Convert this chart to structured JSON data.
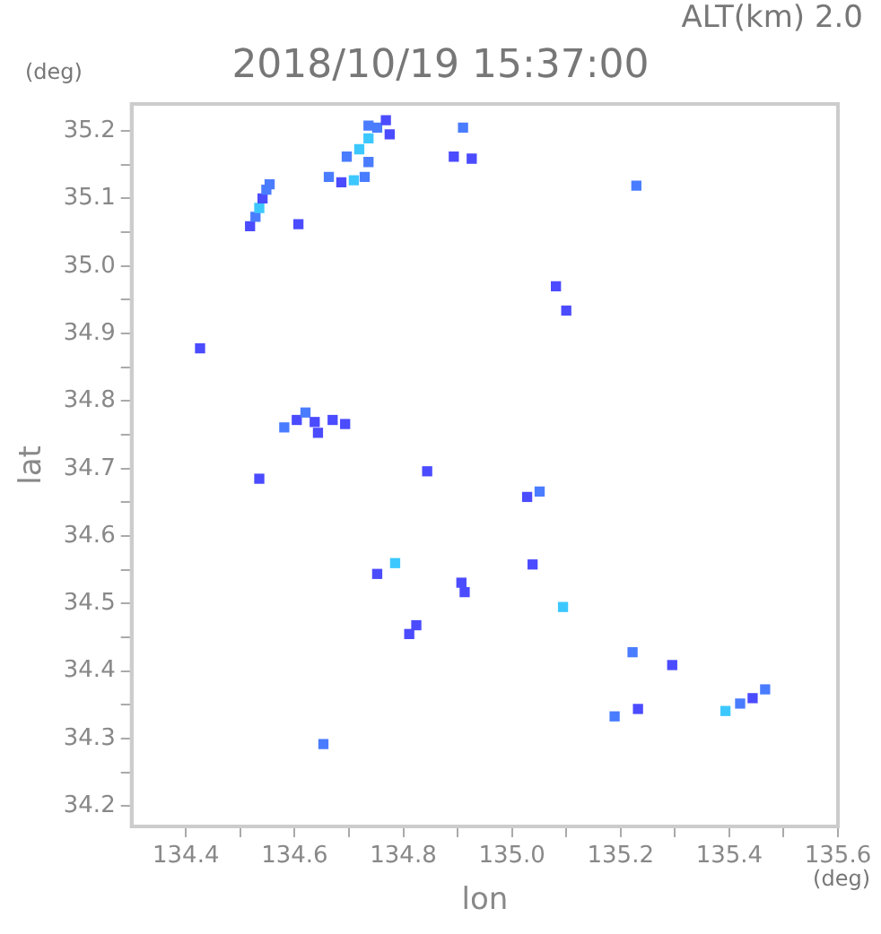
{
  "chart_data": {
    "type": "scatter",
    "title": "2018/10/19 15:37:00",
    "xlabel": "lon",
    "ylabel": "lat",
    "annotations": [
      "ALT(km) 2.0",
      "(deg)",
      "(deg)"
    ],
    "xlim": [
      134.3,
      135.6
    ],
    "xticks": [
      134.4,
      {
        "value": 134.5,
        "label": null
      },
      134.6,
      {
        "value": 134.7,
        "label": null
      },
      134.8,
      {
        "value": 134.9,
        "label": null
      },
      {
        "value": 135.0,
        "label": "135.0"
      },
      {
        "value": 135.1,
        "label": null
      },
      135.2,
      {
        "value": 135.3,
        "label": null
      },
      135.4,
      {
        "value": 135.5,
        "label": null
      },
      135.6
    ],
    "ylim": [
      34.17,
      35.24
    ],
    "yticks": [
      34.2,
      {
        "value": 34.25,
        "label": null
      },
      34.3,
      {
        "value": 34.35,
        "label": null
      },
      34.4,
      {
        "value": 34.45,
        "label": null
      },
      34.5,
      {
        "value": 34.55,
        "label": null
      },
      34.6,
      {
        "value": 34.65,
        "label": null
      },
      34.7,
      {
        "value": 34.75,
        "label": null
      },
      34.8,
      {
        "value": 34.85,
        "label": null
      },
      34.9,
      {
        "value": 34.95,
        "label": null
      },
      {
        "value": 35.0,
        "label": "35.0"
      },
      {
        "value": 35.05,
        "label": null
      },
      35.1,
      {
        "value": 35.15,
        "label": null
      },
      35.2
    ],
    "grid": false,
    "legend": false,
    "marker": "square",
    "series": [
      {
        "x": [
          134.518,
          134.528,
          134.535,
          134.541,
          134.548,
          134.554,
          134.607,
          134.736,
          134.752,
          134.768,
          134.736,
          134.775,
          134.696,
          134.719,
          134.736,
          134.663,
          134.686,
          134.709,
          134.729,
          134.91,
          134.893,
          134.926,
          135.229,
          135.081,
          135.1,
          134.426,
          134.581,
          134.604,
          134.62,
          134.637,
          134.643,
          134.67,
          134.693,
          134.535,
          134.844,
          135.028,
          135.051,
          134.785,
          134.752,
          134.907,
          134.913,
          135.038,
          134.811,
          134.824,
          134.653,
          135.094,
          135.222,
          135.295,
          135.189,
          135.232,
          135.393,
          135.42,
          135.443,
          135.466
        ],
        "values": [
          35.059,
          35.073,
          35.086,
          35.1,
          35.113,
          35.121,
          35.062,
          35.189,
          35.205,
          35.216,
          35.208,
          35.195,
          35.162,
          35.173,
          35.154,
          35.132,
          35.124,
          35.127,
          35.132,
          35.205,
          35.162,
          35.159,
          35.119,
          34.97,
          34.934,
          34.878,
          34.761,
          34.772,
          34.783,
          34.769,
          34.753,
          34.772,
          34.766,
          34.685,
          34.696,
          34.658,
          34.666,
          34.56,
          34.544,
          34.531,
          34.517,
          34.558,
          34.455,
          34.468,
          34.292,
          34.495,
          34.428,
          34.409,
          34.333,
          34.344,
          34.341,
          34.352,
          34.36,
          34.373
        ],
        "colors": [
          "#4b4bff",
          "#4a7cff",
          "#3cc8ff",
          "#4b4bff",
          "#4a7cff",
          "#4a7cff",
          "#4b4bff",
          "#3cc8ff",
          "#4a7cff",
          "#4b4bff",
          "#4a7cff",
          "#4b4bff",
          "#4a7cff",
          "#3cc8ff",
          "#4a7cff",
          "#4a7cff",
          "#4b4bff",
          "#3cc8ff",
          "#4a7cff",
          "#4a7cff",
          "#4b4bff",
          "#4b4bff",
          "#4a7cff",
          "#4b4bff",
          "#4b4bff",
          "#4b4bff",
          "#4a7cff",
          "#4b4bff",
          "#4a7cff",
          "#4b4bff",
          "#4b4bff",
          "#4b4bff",
          "#4b4bff",
          "#4b4bff",
          "#4b4bff",
          "#4b4bff",
          "#4a7cff",
          "#3cc8ff",
          "#4b4bff",
          "#4b4bff",
          "#4b4bff",
          "#4b4bff",
          "#4b4bff",
          "#4b4bff",
          "#4a7cff",
          "#3cc8ff",
          "#4a7cff",
          "#4b4bff",
          "#4a7cff",
          "#4b4bff",
          "#3cc8ff",
          "#4a7cff",
          "#4b4bff",
          "#4a7cff"
        ]
      }
    ]
  }
}
